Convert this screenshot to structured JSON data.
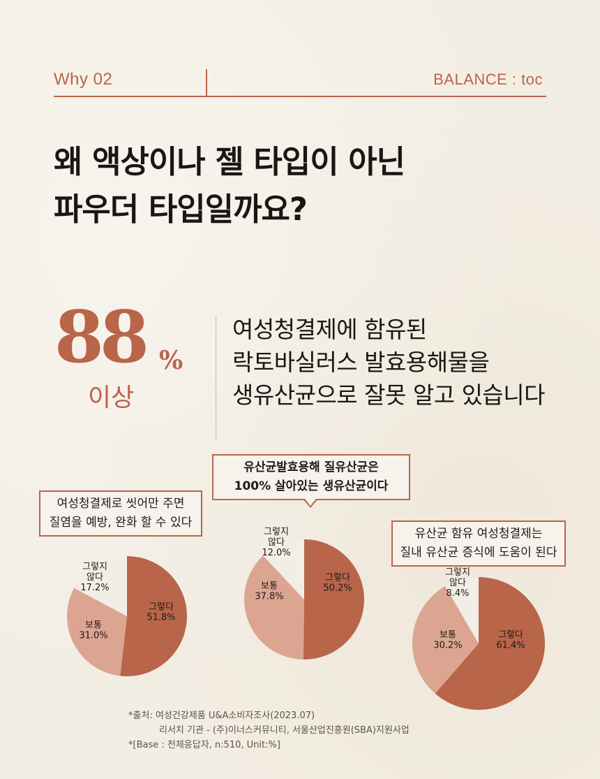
{
  "header": {
    "left_label": "Why 02",
    "right_label": "BALANCE : toc"
  },
  "title": {
    "line1": "왜 액상이나 젤 타입이 아닌",
    "line2": "파우더 타입일까요?"
  },
  "stat": {
    "number": "88",
    "percent_sign": "%",
    "sub": "이상",
    "desc_line1": "여성청결제에 함유된",
    "desc_line2": "락토바실러스 발효용해물을",
    "desc_line3": "생유산균으로 잘못 알고 있습니다"
  },
  "colors": {
    "accent": "#b8654a",
    "slice_yes": "#b8654a",
    "slice_neutral": "#dca592",
    "slice_no": "#f2eee6"
  },
  "callouts": {
    "c1_line1": "여성청결제로 씻어만 주면",
    "c1_line2": "질염을 예방, 완화 할 수 있다",
    "c2_line1": "유산균발효용해 질유산균은",
    "c2_line2": "100% 살아있는 생유산균이다",
    "c3_line1": "유산균 함유 여성청결제는",
    "c3_line2": "질내 유산균 증식에 도움이 된다"
  },
  "chart_data": [
    {
      "type": "pie",
      "title": "여성청결제로 씻어만 주면 질염을 예방, 완화 할 수 있다",
      "slices": [
        {
          "label": "그렇다",
          "value": 51.8,
          "text": "51.8%"
        },
        {
          "label": "보통",
          "value": 31.0,
          "text": "31.0%"
        },
        {
          "label": "그렇지 않다",
          "value": 17.2,
          "text": "17.2%"
        }
      ]
    },
    {
      "type": "pie",
      "title": "유산균발효용해 질유산균은 100% 살아있는 생유산균이다",
      "slices": [
        {
          "label": "그렇다",
          "value": 50.2,
          "text": "50.2%"
        },
        {
          "label": "보통",
          "value": 37.8,
          "text": "37.8%"
        },
        {
          "label": "그렇지 않다",
          "value": 12.0,
          "text": "12.0%"
        }
      ]
    },
    {
      "type": "pie",
      "title": "유산균 함유 여성청결제는 질내 유산균 증식에 도움이 된다",
      "slices": [
        {
          "label": "그렇다",
          "value": 61.4,
          "text": "61.4%"
        },
        {
          "label": "보통",
          "value": 30.2,
          "text": "30.2%"
        },
        {
          "label": "그렇지 않다",
          "value": 8.4,
          "text": "8.4%"
        }
      ]
    }
  ],
  "labels": {
    "yes": "그렇다",
    "neutral": "보통",
    "no_line1": "그렇지",
    "no_line2": "않다"
  },
  "footnote": {
    "line1": "*출처: 여성건강제품 U&A소비자조사(2023.07)",
    "line2": "리서치 기관 - (주)이너스커뮤니티, 서울산업진흥원(SBA)지원사업",
    "line3": "*[Base : 전체응답자, n:510, Unit:%]"
  }
}
